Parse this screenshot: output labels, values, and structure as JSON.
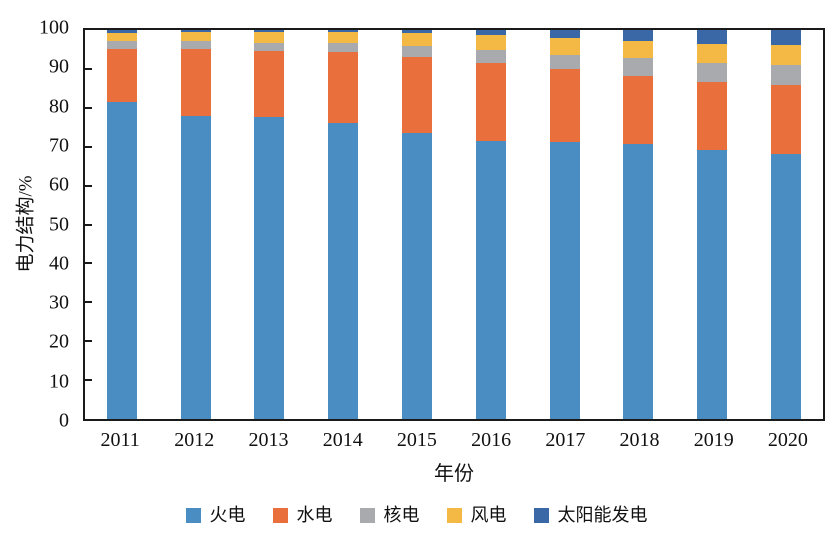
{
  "chart_data": {
    "type": "bar",
    "stacked": true,
    "title": "",
    "xlabel": "年份",
    "ylabel": "电力结构/%",
    "ylim": [
      0,
      100
    ],
    "yticks": [
      0,
      10,
      20,
      30,
      40,
      50,
      60,
      70,
      80,
      90,
      100
    ],
    "grid": false,
    "legend_position": "bottom",
    "axis_color": "#1a1a1a",
    "categories": [
      "2011",
      "2012",
      "2013",
      "2014",
      "2015",
      "2016",
      "2017",
      "2018",
      "2019",
      "2020"
    ],
    "series": [
      {
        "name": "火电",
        "color": "#4A8DC3",
        "values": [
          81.4,
          77.8,
          77.6,
          76.2,
          73.5,
          71.5,
          71.3,
          70.8,
          69.1,
          68.0
        ]
      },
      {
        "name": "水电",
        "color": "#E9703D",
        "values": [
          13.7,
          17.4,
          17.0,
          18.1,
          19.5,
          20.0,
          18.6,
          17.5,
          17.6,
          17.8
        ]
      },
      {
        "name": "核电",
        "color": "#A8AAAD",
        "values": [
          2.1,
          2.0,
          2.0,
          2.3,
          3.0,
          3.3,
          3.8,
          4.6,
          4.9,
          5.1
        ]
      },
      {
        "name": "风电",
        "color": "#F3B944",
        "values": [
          2.1,
          2.3,
          2.8,
          2.8,
          3.2,
          4.0,
          4.2,
          4.2,
          4.9,
          5.2
        ]
      },
      {
        "name": "太阳能发电",
        "color": "#3A68A6",
        "values": [
          0.7,
          0.5,
          0.6,
          0.6,
          0.8,
          1.2,
          2.1,
          2.9,
          3.5,
          3.9
        ]
      }
    ]
  }
}
